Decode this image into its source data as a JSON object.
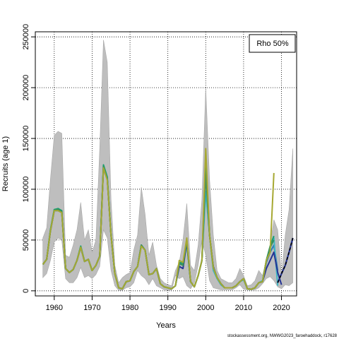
{
  "chart_data": {
    "type": "line",
    "xlabel": "Years",
    "ylabel": "Recruits (age 1)",
    "xlim": [
      1955,
      2024
    ],
    "ylim": [
      -5000,
      255000
    ],
    "xticks": [
      1960,
      1970,
      1980,
      1990,
      2000,
      2010,
      2020
    ],
    "yticks": [
      0,
      50000,
      100000,
      150000,
      200000,
      250000
    ],
    "grid": true,
    "legend": {
      "position": "top-right",
      "text": "Rho 50%"
    },
    "credit": "stockassessment.org, NWWG2023_faroehaddock, r17628",
    "colors": {
      "band": "#bebebe",
      "band_edge": "#a8a8a8",
      "current": "#000000",
      "retro": [
        "#2c7fb8",
        "#41b6c4",
        "#253494",
        "#1d9e6e",
        "#3a8f5a",
        "#a6a832"
      ]
    },
    "band": {
      "x": [
        1957,
        1958,
        1959,
        1960,
        1961,
        1962,
        1963,
        1964,
        1965,
        1966,
        1967,
        1968,
        1969,
        1970,
        1971,
        1972,
        1973,
        1974,
        1975,
        1976,
        1977,
        1978,
        1979,
        1980,
        1981,
        1982,
        1983,
        1984,
        1985,
        1986,
        1987,
        1988,
        1989,
        1990,
        1991,
        1992,
        1993,
        1994,
        1995,
        1996,
        1997,
        1998,
        1999,
        2000,
        2001,
        2002,
        2003,
        2004,
        2005,
        2006,
        2007,
        2008,
        2009,
        2010,
        2011,
        2012,
        2013,
        2014,
        2015,
        2016,
        2017,
        2018,
        2019,
        2020,
        2021,
        2022,
        2023
      ],
      "lower": [
        13000,
        17000,
        30000,
        48000,
        52000,
        50000,
        12000,
        8000,
        8000,
        13000,
        23000,
        13000,
        15000,
        12000,
        16000,
        24000,
        60000,
        52000,
        20000,
        5000,
        500,
        500,
        3000,
        4000,
        8000,
        20000,
        15000,
        12000,
        6000,
        12000,
        5000,
        3000,
        1000,
        800,
        800,
        15000,
        12000,
        14000,
        5000,
        2000,
        8000,
        25000,
        50000,
        35000,
        10000,
        3000,
        2000,
        1000,
        1000,
        1000,
        1000,
        3000,
        6000,
        1500,
        1000,
        800,
        1000,
        3000,
        7000,
        12000,
        14000,
        10000,
        4000,
        2000,
        6000,
        5000,
        8000
      ],
      "upper": [
        52000,
        62000,
        110000,
        153000,
        157000,
        155000,
        35000,
        33000,
        45000,
        60000,
        87000,
        50000,
        60000,
        38000,
        50000,
        140000,
        247000,
        225000,
        90000,
        25000,
        8000,
        13000,
        16000,
        18000,
        40000,
        55000,
        102000,
        75000,
        35000,
        48000,
        25000,
        12000,
        8000,
        6000,
        5000,
        20000,
        28000,
        50000,
        86000,
        25000,
        20000,
        45000,
        90000,
        200000,
        110000,
        55000,
        20000,
        12000,
        10000,
        8000,
        8000,
        12000,
        22000,
        15000,
        5000,
        6000,
        10000,
        20000,
        15000,
        30000,
        45000,
        70000,
        60000,
        15000,
        55000,
        80000,
        140000
      ]
    },
    "series": [
      {
        "x": [
          1957,
          1958,
          1959,
          1960,
          1961,
          1962,
          1963,
          1964,
          1965,
          1966,
          1967,
          1968,
          1969,
          1970,
          1971,
          1972,
          1973,
          1974,
          1975,
          1976,
          1977,
          1978,
          1979,
          1980,
          1981,
          1982,
          1983,
          1984,
          1985,
          1986,
          1987,
          1988,
          1989,
          1990,
          1991,
          1992,
          1993,
          1994,
          1995,
          1996,
          1997,
          1998,
          1999,
          2000,
          2001,
          2002,
          2003,
          2004,
          2005,
          2006,
          2007,
          2008,
          2009,
          2010,
          2011,
          2012,
          2013,
          2014,
          2015,
          2016,
          2017,
          2018,
          2019
        ],
        "values": [
          26000,
          31000,
          59000,
          79000,
          79000,
          77000,
          22000,
          18000,
          21000,
          30000,
          43000,
          29000,
          31000,
          20000,
          25000,
          34000,
          122000,
          110000,
          55000,
          17000,
          3000,
          2000,
          9000,
          10000,
          19000,
          24000,
          45000,
          40000,
          16000,
          17000,
          22000,
          7000,
          4000,
          3000,
          2000,
          5000,
          26000,
          26000,
          48000,
          9000,
          4000,
          15000,
          30000,
          132000,
          55000,
          23000,
          13000,
          7000,
          3000,
          3000,
          3000,
          5000,
          9000,
          12000,
          2000,
          1500,
          3000,
          8000,
          9000,
          28000,
          38000,
          45000,
          20000
        ]
      },
      {
        "x": [
          1957,
          1958,
          1959,
          1960,
          1961,
          1962,
          1963,
          1964,
          1965,
          1966,
          1967,
          1968,
          1969,
          1970,
          1971,
          1972,
          1973,
          1974,
          1975,
          1976,
          1977,
          1978,
          1979,
          1980,
          1981,
          1982,
          1983,
          1984,
          1985,
          1986,
          1987,
          1988,
          1989,
          1990,
          1991,
          1992,
          1993,
          1994,
          1995,
          1996,
          1997,
          1998,
          1999,
          2000,
          2001,
          2002,
          2003,
          2004,
          2005,
          2006,
          2007,
          2008,
          2009,
          2010,
          2011,
          2012,
          2013,
          2014,
          2015,
          2016,
          2017,
          2018,
          2019
        ],
        "values": [
          26000,
          31000,
          60000,
          80000,
          80000,
          78000,
          22000,
          18000,
          21000,
          30000,
          44000,
          29000,
          31000,
          20000,
          25000,
          34000,
          123000,
          111000,
          55000,
          17000,
          3000,
          2000,
          9000,
          10000,
          19000,
          24000,
          45000,
          40000,
          16000,
          17000,
          22000,
          7000,
          4000,
          3000,
          2000,
          5000,
          26000,
          27000,
          46000,
          9000,
          4000,
          15000,
          30000,
          98000,
          55000,
          20000,
          12000,
          6000,
          3000,
          3000,
          3000,
          5000,
          9000,
          11000,
          2000,
          1500,
          3000,
          8000,
          10000,
          30000,
          42000,
          52000,
          5000
        ]
      },
      {
        "x": [
          1957,
          1958,
          1959,
          1960,
          1961,
          1962,
          1963,
          1964,
          1965,
          1966,
          1967,
          1968,
          1969,
          1970,
          1971,
          1972,
          1973,
          1974,
          1975,
          1976,
          1977,
          1978,
          1979,
          1980,
          1981,
          1982,
          1983,
          1984,
          1985,
          1986,
          1987,
          1988,
          1989,
          1990,
          1991,
          1992,
          1993,
          1994,
          1995,
          1996,
          1997,
          1998,
          1999,
          2000,
          2001,
          2002,
          2003,
          2004,
          2005,
          2006,
          2007,
          2008,
          2009,
          2010,
          2011,
          2012,
          2013,
          2014,
          2015,
          2016,
          2017,
          2018,
          2019,
          2020
        ],
        "values": [
          26000,
          31000,
          59000,
          79000,
          80000,
          78000,
          22000,
          18000,
          21000,
          30000,
          43000,
          29000,
          31000,
          20000,
          25000,
          34000,
          122000,
          110000,
          55000,
          17000,
          3000,
          2000,
          9000,
          10000,
          19000,
          24000,
          45000,
          40000,
          16000,
          17000,
          22000,
          7000,
          4000,
          3000,
          2000,
          5000,
          24000,
          22000,
          48000,
          9000,
          4000,
          15000,
          30000,
          120000,
          55000,
          24000,
          13000,
          7000,
          3000,
          3000,
          3000,
          5000,
          9000,
          12000,
          2000,
          1500,
          3000,
          8000,
          9000,
          22000,
          30000,
          38000,
          18000,
          6000
        ]
      },
      {
        "x": [
          1957,
          1958,
          1959,
          1960,
          1961,
          1962,
          1963,
          1964,
          1965,
          1966,
          1967,
          1968,
          1969,
          1970,
          1971,
          1972,
          1973,
          1974,
          1975,
          1976,
          1977,
          1978,
          1979,
          1980,
          1981,
          1982,
          1983,
          1984,
          1985,
          1986,
          1987,
          1988,
          1989,
          1990,
          1991,
          1992,
          1993,
          1994,
          1995,
          1996,
          1997,
          1998,
          1999,
          2000,
          2001,
          2002,
          2003,
          2004,
          2005,
          2006,
          2007,
          2008,
          2009,
          2010,
          2011,
          2012,
          2013,
          2014,
          2015,
          2016,
          2017,
          2018
        ],
        "values": [
          26000,
          31000,
          60000,
          80000,
          81000,
          79000,
          22000,
          18000,
          21000,
          30000,
          44000,
          29000,
          31000,
          20000,
          25000,
          34000,
          124000,
          112000,
          55000,
          17000,
          3000,
          2000,
          9000,
          10000,
          19000,
          24000,
          45000,
          40000,
          16000,
          17000,
          22000,
          7000,
          4000,
          3000,
          2000,
          5000,
          28000,
          27000,
          50000,
          9000,
          4000,
          15000,
          30000,
          125000,
          55000,
          23000,
          13000,
          7000,
          3000,
          3000,
          3000,
          5000,
          9000,
          12000,
          2000,
          1500,
          3000,
          8000,
          9000,
          30000,
          44000,
          54000
        ]
      },
      {
        "x": [
          1957,
          1958,
          1959,
          1960,
          1961,
          1962,
          1963,
          1964,
          1965,
          1966,
          1967,
          1968,
          1969,
          1970,
          1971,
          1972,
          1973,
          1974,
          1975,
          1976,
          1977,
          1978,
          1979,
          1980,
          1981,
          1982,
          1983,
          1984,
          1985,
          1986,
          1987,
          1988,
          1989,
          1990,
          1991,
          1992,
          1993,
          1994,
          1995,
          1996,
          1997,
          1998,
          1999,
          2000,
          2001,
          2002,
          2003,
          2004,
          2005,
          2006,
          2007,
          2008,
          2009,
          2010,
          2011,
          2012,
          2013,
          2014,
          2015,
          2016,
          2017,
          2018
        ],
        "values": [
          26000,
          31000,
          59000,
          79000,
          80000,
          78000,
          22000,
          18000,
          21000,
          30000,
          43000,
          29000,
          31000,
          20000,
          25000,
          34000,
          122000,
          110000,
          55000,
          17000,
          3000,
          2000,
          9000,
          10000,
          19000,
          24000,
          45000,
          40000,
          16000,
          17000,
          22000,
          7000,
          4000,
          3000,
          2000,
          5000,
          27000,
          25000,
          50000,
          9000,
          4000,
          15000,
          30000,
          115000,
          55000,
          23000,
          13000,
          7000,
          3000,
          3000,
          3000,
          5000,
          9000,
          12000,
          2000,
          1500,
          3000,
          8000,
          9000,
          30000,
          43000,
          50000
        ]
      },
      {
        "x": [
          1957,
          1958,
          1959,
          1960,
          1961,
          1962,
          1963,
          1964,
          1965,
          1966,
          1967,
          1968,
          1969,
          1970,
          1971,
          1972,
          1973,
          1974,
          1975,
          1976,
          1977,
          1978,
          1979,
          1980,
          1981,
          1982,
          1983,
          1984,
          1985,
          1986,
          1987,
          1988,
          1989,
          1990,
          1991,
          1992,
          1993,
          1994,
          1995,
          1996,
          1997,
          1998,
          1999,
          2000,
          2001,
          2002,
          2003,
          2004,
          2005,
          2006,
          2007,
          2008,
          2009,
          2010,
          2011,
          2012,
          2013,
          2014,
          2015,
          2016,
          2017,
          2018
        ],
        "values": [
          26000,
          31000,
          59000,
          79000,
          79000,
          77000,
          22000,
          18000,
          21000,
          30000,
          43000,
          29000,
          31000,
          20000,
          25000,
          34000,
          121000,
          109000,
          55000,
          17000,
          3000,
          2000,
          9000,
          10000,
          19000,
          24000,
          44000,
          40000,
          16000,
          17000,
          22000,
          7000,
          4000,
          3000,
          2000,
          5000,
          30000,
          28000,
          52000,
          9000,
          4000,
          15000,
          30000,
          140000,
          55000,
          23000,
          13000,
          7000,
          3000,
          3000,
          3000,
          5000,
          9000,
          12000,
          2000,
          1500,
          3000,
          8000,
          9000,
          30000,
          38000,
          116000
        ]
      },
      {
        "x": [
          2019,
          2020,
          2021,
          2022,
          2023
        ],
        "values": [
          8000,
          17000,
          25000,
          38000,
          52000
        ],
        "dashed_overlay": true
      }
    ]
  }
}
